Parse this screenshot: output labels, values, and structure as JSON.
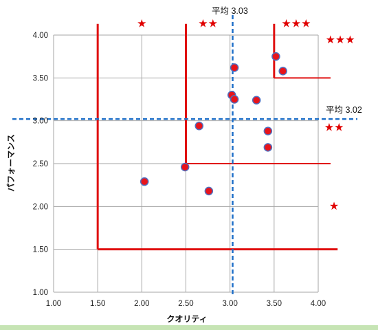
{
  "chart_data": {
    "type": "scatter",
    "xlabel": "クオリティ",
    "ylabel": "パフォーマンス",
    "xlim": [
      1.0,
      4.0
    ],
    "ylim": [
      1.0,
      4.0
    ],
    "xticks": [
      "1.00",
      "1.50",
      "2.00",
      "2.50",
      "3.00",
      "3.50",
      "4.00"
    ],
    "yticks": [
      "1.00",
      "1.50",
      "2.00",
      "2.50",
      "3.00",
      "3.50",
      "4.00"
    ],
    "grid": true,
    "points": [
      {
        "x": 2.03,
        "y": 2.29
      },
      {
        "x": 2.49,
        "y": 2.46
      },
      {
        "x": 2.65,
        "y": 2.94
      },
      {
        "x": 2.76,
        "y": 2.18
      },
      {
        "x": 3.02,
        "y": 3.3
      },
      {
        "x": 3.05,
        "y": 3.25
      },
      {
        "x": 3.05,
        "y": 3.62
      },
      {
        "x": 3.3,
        "y": 3.24
      },
      {
        "x": 3.43,
        "y": 2.88
      },
      {
        "x": 3.43,
        "y": 2.69
      },
      {
        "x": 3.52,
        "y": 3.75
      },
      {
        "x": 3.6,
        "y": 3.58
      }
    ],
    "x_average": {
      "value": 3.03,
      "label": "平均 3.03"
    },
    "y_average": {
      "value": 3.02,
      "label": "平均 3.02"
    },
    "tiers": [
      {
        "rating": "★",
        "region": {
          "x_min": 1.5,
          "y_min": 1.5
        }
      },
      {
        "rating": "★★",
        "region": {
          "x_min": 2.5,
          "y_min": 2.5
        }
      },
      {
        "rating": "★★★",
        "region": {
          "x_min": 3.5,
          "y_min": 3.5
        }
      }
    ],
    "star_labels": [
      {
        "text": "★",
        "x": 2.0,
        "y": 4.14
      },
      {
        "text": "★★",
        "x": 2.75,
        "y": 4.14
      },
      {
        "text": "★★★",
        "x": 3.75,
        "y": 4.14
      },
      {
        "text": "★★★",
        "x": 4.25,
        "y": 3.95
      },
      {
        "text": "★★",
        "x": 4.18,
        "y": 2.93
      },
      {
        "text": "★",
        "x": 4.18,
        "y": 2.01
      }
    ],
    "colors": {
      "point_fill": "#e8141b",
      "point_stroke": "#4f6fc0",
      "tier_line": "#e01010",
      "average_line": "#1f6fc8",
      "grid": "#a6a6a6",
      "star": "#e00000"
    }
  }
}
